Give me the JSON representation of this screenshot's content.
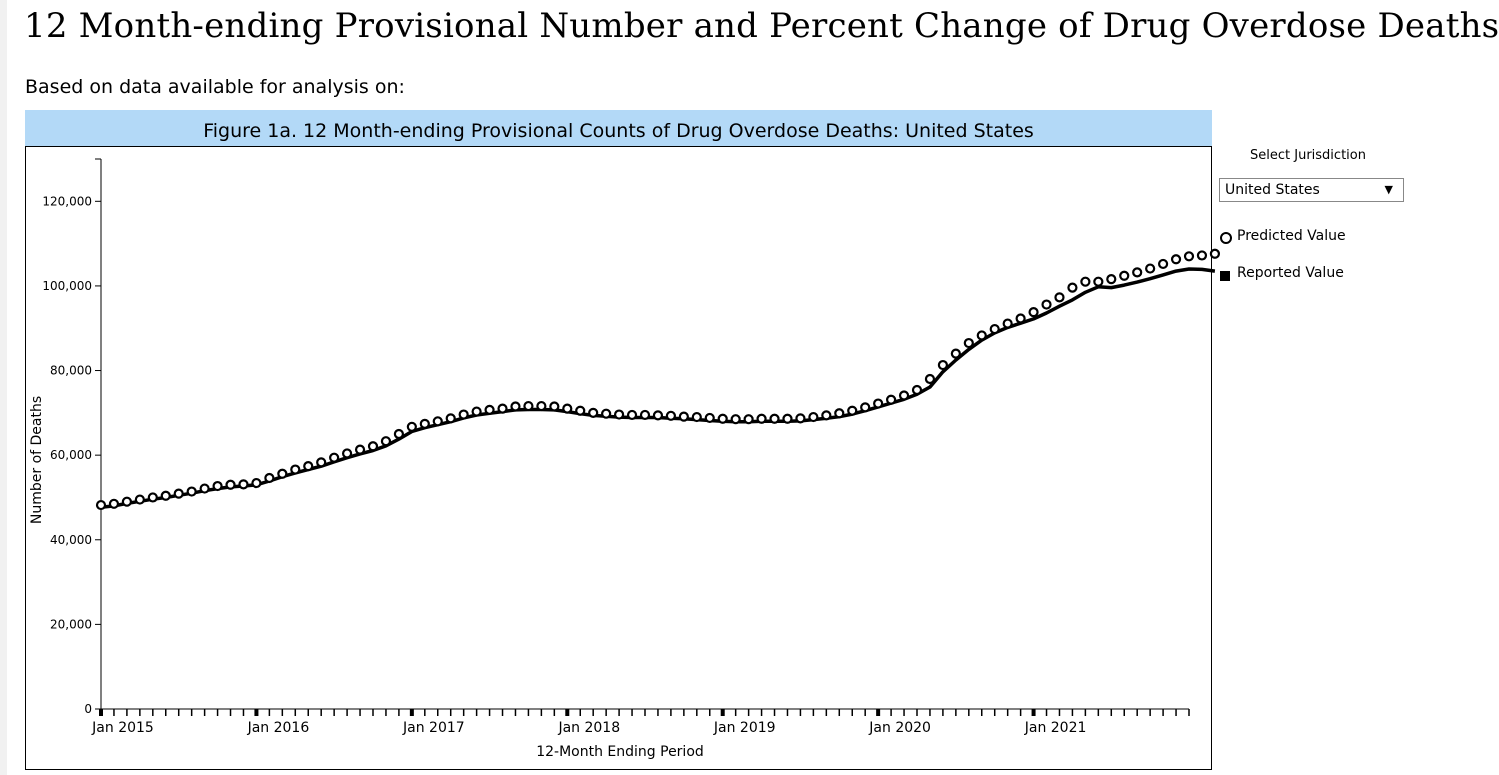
{
  "page": {
    "title": "12 Month-ending Provisional Number and Percent Change of Drug Overdose Deaths",
    "subtitle": "Based on data available for analysis on:"
  },
  "controls": {
    "jurisdiction_label": "Select Jurisdiction",
    "jurisdiction_value": "United States",
    "caret": "▼"
  },
  "legend": {
    "predicted": "Predicted Value",
    "reported": "Reported Value"
  },
  "chart_data": {
    "type": "line",
    "title": "Figure 1a. 12 Month-ending Provisional Counts of Drug Overdose Deaths: United States",
    "xlabel": "12-Month Ending Period",
    "ylabel": "Number of Deaths",
    "ylim": [
      0,
      130000
    ],
    "yticks": [
      0,
      20000,
      40000,
      60000,
      80000,
      100000,
      120000
    ],
    "ytick_labels": [
      "0",
      "20,000",
      "40,000",
      "60,000",
      "80,000",
      "100,000",
      "120,000"
    ],
    "x_start": "Jan 2015",
    "x_end": "Dec 2021",
    "xtick_labels": [
      "Jan 2015",
      "Jan 2016",
      "Jan 2017",
      "Jan 2018",
      "Jan 2019",
      "Jan 2020",
      "Jan 2021"
    ],
    "series": [
      {
        "name": "Reported Value",
        "style": "line",
        "values": [
          47700,
          48000,
          48600,
          49100,
          49600,
          50000,
          50500,
          51000,
          51600,
          52100,
          52500,
          52700,
          53000,
          53900,
          54900,
          55800,
          56600,
          57400,
          58400,
          59400,
          60300,
          61100,
          62200,
          63800,
          65600,
          66500,
          67200,
          67900,
          68800,
          69500,
          69900,
          70300,
          70700,
          70800,
          70800,
          70700,
          70300,
          69800,
          69400,
          69200,
          69000,
          68900,
          68900,
          68900,
          68700,
          68600,
          68400,
          68200,
          68000,
          67900,
          67900,
          68000,
          68000,
          68000,
          68100,
          68400,
          68700,
          69100,
          69700,
          70500,
          71400,
          72300,
          73200,
          74400,
          76100,
          79700,
          82500,
          85000,
          87200,
          88900,
          90200,
          91200,
          92200,
          93600,
          95200,
          96700,
          98500,
          99800,
          99600,
          100200,
          100900,
          101700,
          102600,
          103500,
          104000,
          103900,
          103500
        ]
      },
      {
        "name": "Predicted Value",
        "style": "circle",
        "values": [
          48200,
          48500,
          49000,
          49500,
          50000,
          50400,
          50900,
          51400,
          52100,
          52700,
          53000,
          53100,
          53400,
          54600,
          55600,
          56600,
          57400,
          58300,
          59400,
          60400,
          61300,
          62100,
          63300,
          65000,
          66700,
          67400,
          68000,
          68700,
          69600,
          70300,
          70700,
          71000,
          71500,
          71600,
          71600,
          71500,
          71000,
          70500,
          70000,
          69800,
          69600,
          69500,
          69500,
          69400,
          69300,
          69100,
          69000,
          68800,
          68600,
          68500,
          68500,
          68600,
          68600,
          68600,
          68700,
          69000,
          69400,
          69900,
          70500,
          71300,
          72200,
          73100,
          74100,
          75400,
          78000,
          81300,
          84000,
          86500,
          88300,
          89800,
          91100,
          92300,
          93800,
          95600,
          97300,
          99600,
          101000,
          101000,
          101600,
          102400,
          103200,
          104100,
          105200,
          106300,
          107000,
          107200,
          107600
        ]
      }
    ]
  }
}
